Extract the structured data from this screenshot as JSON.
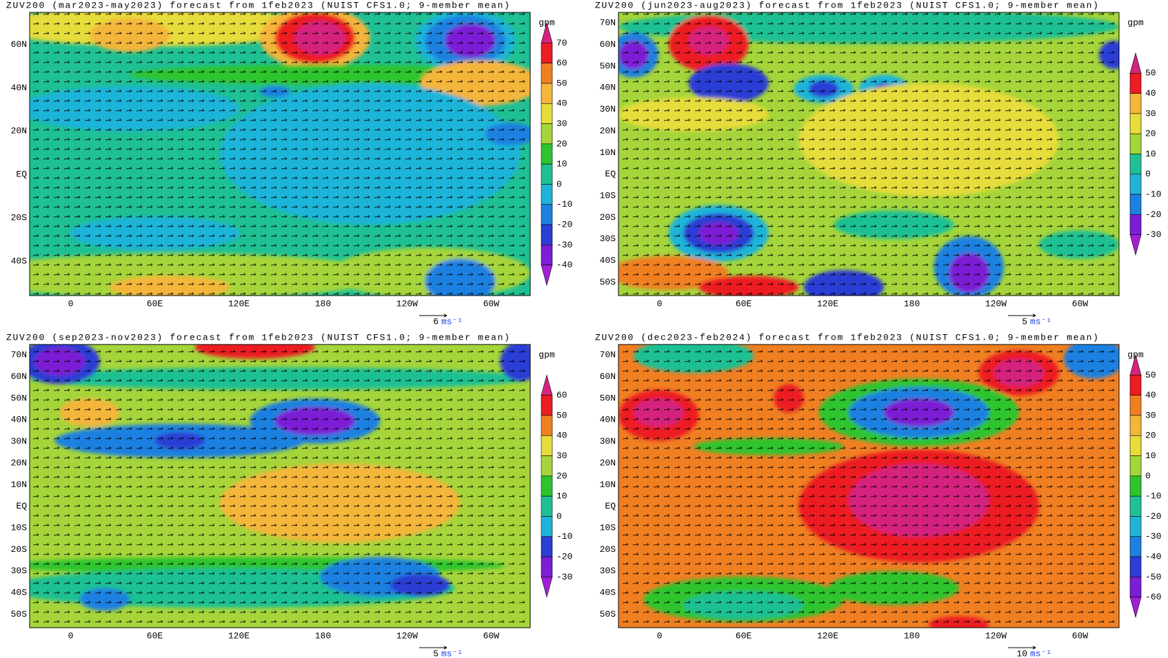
{
  "panels": [
    {
      "title": "ZUV200 (mar2023-may2023) forecast from 1feb2023 (NUIST CFS1.0; 9-member mean)",
      "lat_labels": [
        "60N",
        "40N",
        "20N",
        "EQ",
        "20S",
        "40S"
      ],
      "lon_labels": [
        "0",
        "60E",
        "120E",
        "180",
        "120W",
        "60W"
      ],
      "colorbar": {
        "unit": "gpm",
        "labels": [
          70,
          60,
          50,
          40,
          30,
          20,
          10,
          0,
          -10,
          -20,
          -30,
          -40
        ]
      },
      "vector_scale": {
        "value": "6",
        "unit": "ms⁻¹"
      }
    },
    {
      "title": "ZUV200 (jun2023-aug2023) forecast from 1feb2023 (NUIST CFS1.0; 9-member mean)",
      "lat_labels": [
        "70N",
        "60N",
        "50N",
        "40N",
        "30N",
        "20N",
        "10N",
        "EQ",
        "10S",
        "20S",
        "30S",
        "40S",
        "50S"
      ],
      "lon_labels": [
        "0",
        "60E",
        "120E",
        "180",
        "120W",
        "60W"
      ],
      "colorbar": {
        "unit": "gpm",
        "labels": [
          50,
          40,
          30,
          20,
          10,
          0,
          -10,
          -20,
          -30
        ]
      },
      "vector_scale": {
        "value": "5",
        "unit": "ms⁻¹"
      }
    },
    {
      "title": "ZUV200 (sep2023-nov2023) forecast from 1feb2023 (NUIST CFS1.0; 9-member mean)",
      "lat_labels": [
        "70N",
        "60N",
        "50N",
        "40N",
        "30N",
        "20N",
        "10N",
        "EQ",
        "10S",
        "20S",
        "30S",
        "40S",
        "50S"
      ],
      "lon_labels": [
        "0",
        "60E",
        "120E",
        "180",
        "120W",
        "60W"
      ],
      "colorbar": {
        "unit": "gpm",
        "labels": [
          60,
          50,
          40,
          30,
          20,
          10,
          0,
          -10,
          -20,
          -30
        ]
      },
      "vector_scale": {
        "value": "5",
        "unit": "ms⁻¹"
      }
    },
    {
      "title": "ZUV200 (dec2023-feb2024) forecast from 1feb2023 (NUIST CFS1.0; 9-member mean)",
      "lat_labels": [
        "70N",
        "60N",
        "50N",
        "40N",
        "30N",
        "20N",
        "10N",
        "EQ",
        "10S",
        "20S",
        "30S",
        "40S",
        "50S"
      ],
      "lon_labels": [
        "0",
        "60E",
        "120E",
        "180",
        "120W",
        "60W"
      ],
      "colorbar": {
        "unit": "gpm",
        "labels": [
          50,
          40,
          30,
          20,
          10,
          0,
          -10,
          -20,
          -30,
          -40,
          -50,
          -60
        ]
      },
      "vector_scale": {
        "value": "10",
        "unit": "ms⁻¹"
      }
    }
  ]
}
